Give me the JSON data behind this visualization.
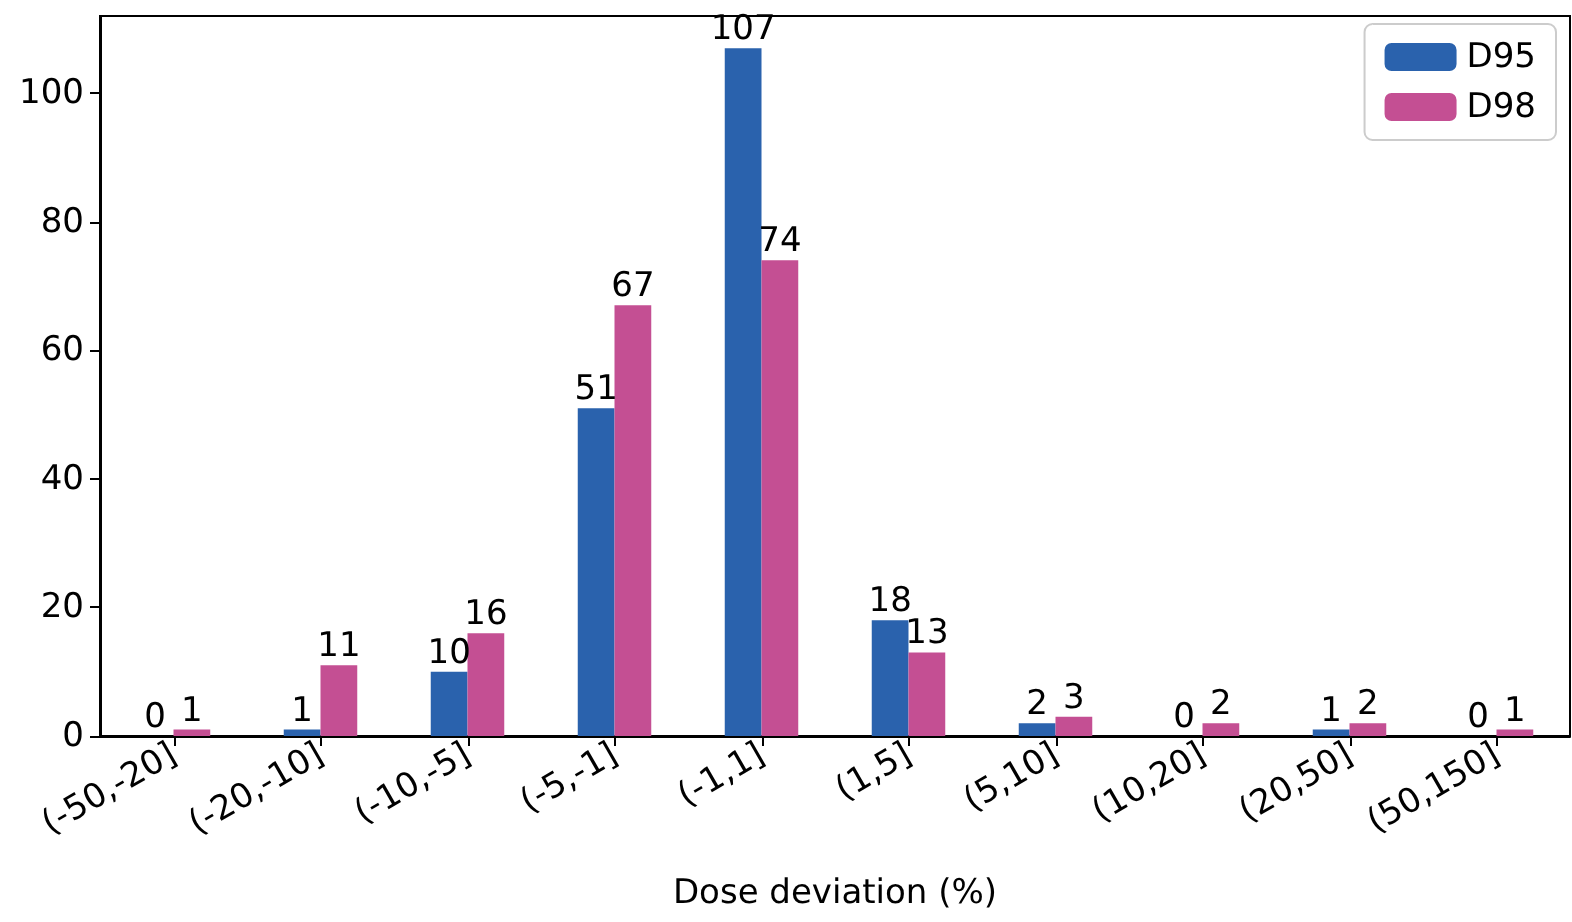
{
  "chart_data": {
    "type": "bar",
    "xlabel": "Dose deviation (%)",
    "categories": [
      "(-50,-20]",
      "(-20,-10]",
      "(-10,-5]",
      "(-5,-1]",
      "(-1,1]",
      "(1,5]",
      "(5,10]",
      "(10,20]",
      "(20,50]",
      "(50,150]"
    ],
    "series": [
      {
        "name": "D95",
        "color": "#2a62ad",
        "values": [
          0,
          1,
          10,
          51,
          107,
          18,
          2,
          0,
          1,
          0
        ]
      },
      {
        "name": "D98",
        "color": "#c44f93",
        "values": [
          1,
          11,
          16,
          67,
          74,
          13,
          3,
          2,
          2,
          1
        ]
      }
    ],
    "ylim": [
      0,
      112
    ],
    "yticks": [
      0,
      20,
      40,
      60,
      80,
      100
    ],
    "grid": false,
    "legend": "top right",
    "data_labels": true
  }
}
